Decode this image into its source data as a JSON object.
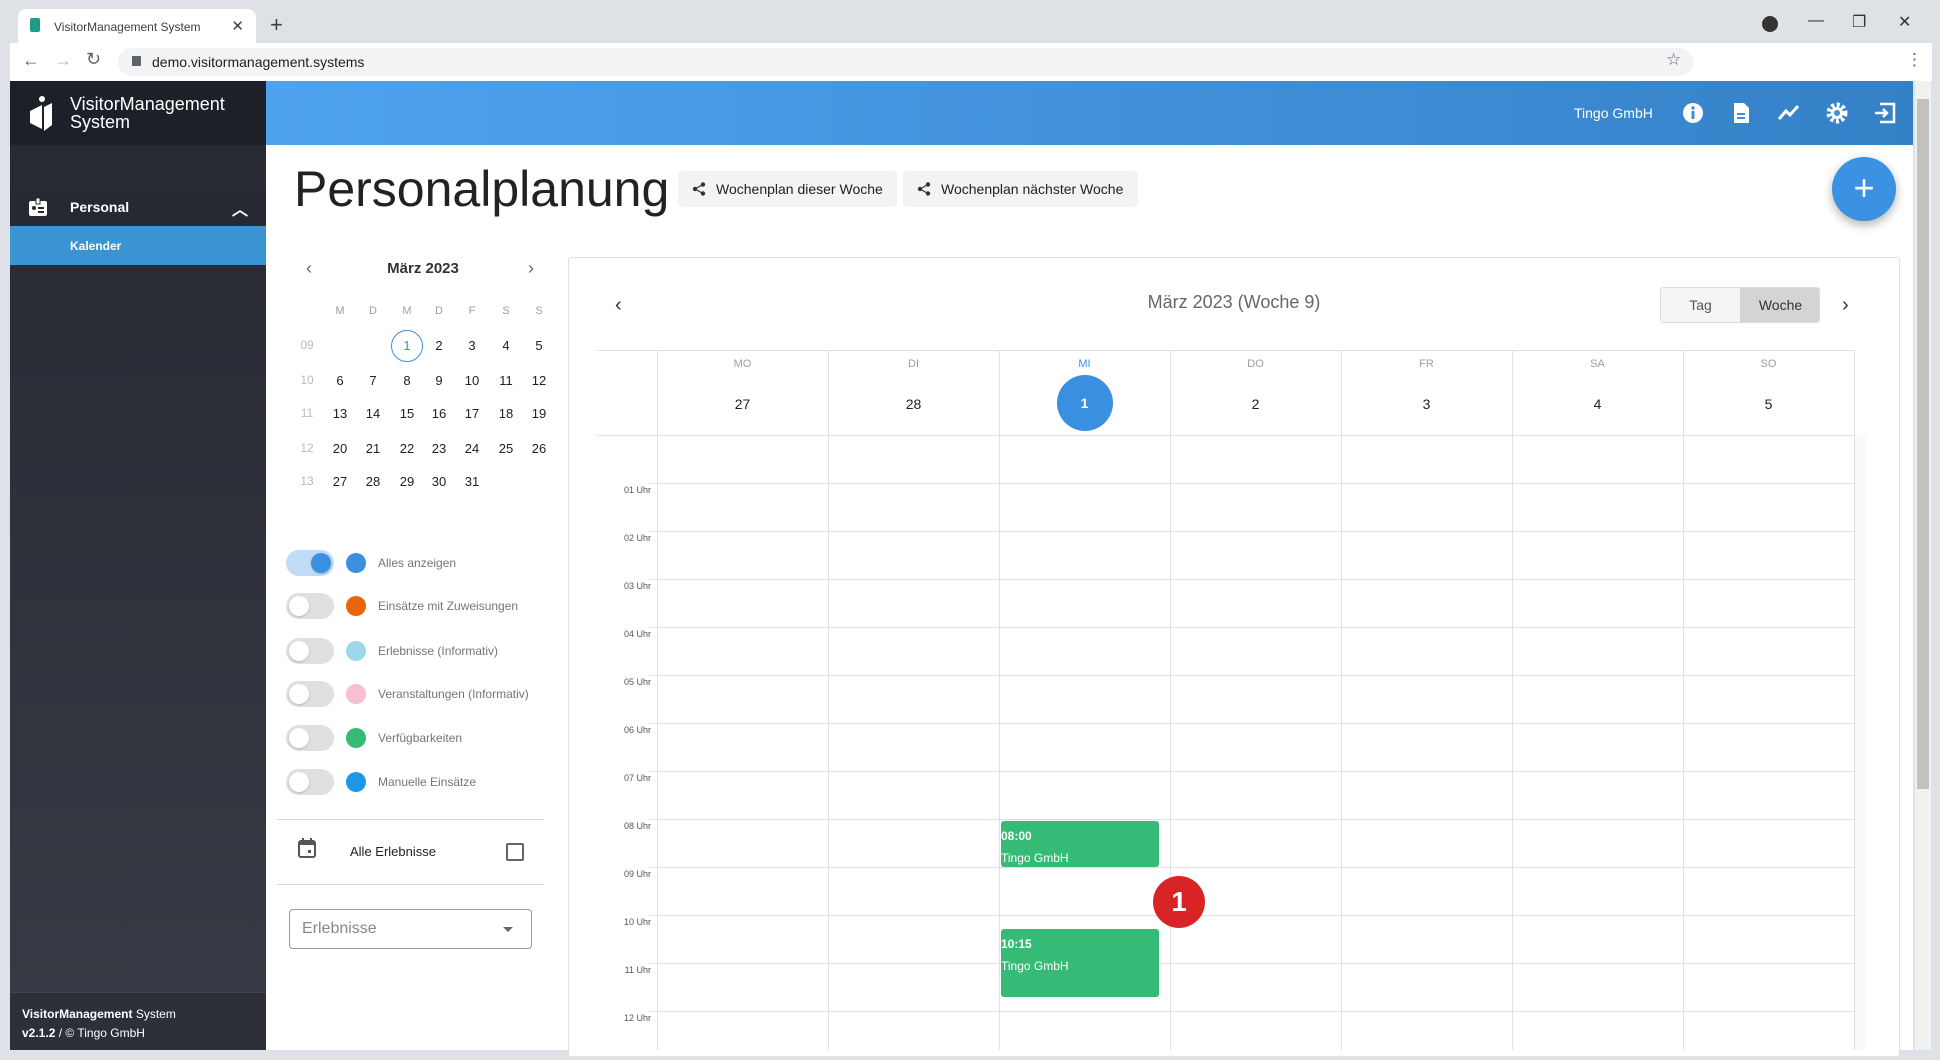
{
  "browser": {
    "tab_title": "VisitorManagement System",
    "url": "demo.visitormanagement.systems"
  },
  "sidebar": {
    "brand_line1": "VisitorManagement",
    "brand_line2": "System",
    "section": "Personal",
    "items": [
      {
        "label": "Kalender",
        "active": true
      }
    ],
    "footer": {
      "brand_bold": "VisitorManagement",
      "brand_rest": "System",
      "version": "v2.1.2",
      "copyright": "/ © Tingo GmbH"
    }
  },
  "header": {
    "company": "Tingo GmbH",
    "icons": [
      "info-icon",
      "document-icon",
      "chart-line-icon",
      "gear-icon",
      "logout-icon"
    ],
    "color": "#3d8fdc"
  },
  "page": {
    "title": "Personalplanung",
    "share_this_week": "Wochenplan dieser Woche",
    "share_next_week": "Wochenplan nächster Woche",
    "fab": "+"
  },
  "mini_calendar": {
    "month": "März 2023",
    "weekdays": [
      "M",
      "D",
      "M",
      "D",
      "F",
      "S",
      "S"
    ],
    "weeks": [
      {
        "no": "09",
        "days": [
          "",
          "",
          "1",
          "2",
          "3",
          "4",
          "5"
        ]
      },
      {
        "no": "10",
        "days": [
          "6",
          "7",
          "8",
          "9",
          "10",
          "11",
          "12"
        ]
      },
      {
        "no": "11",
        "days": [
          "13",
          "14",
          "15",
          "16",
          "17",
          "18",
          "19"
        ]
      },
      {
        "no": "12",
        "days": [
          "20",
          "21",
          "22",
          "23",
          "24",
          "25",
          "26"
        ]
      },
      {
        "no": "13",
        "days": [
          "27",
          "28",
          "29",
          "30",
          "31",
          "",
          ""
        ]
      }
    ],
    "selected": "1"
  },
  "filters": [
    {
      "label": "Alles anzeigen",
      "on": true,
      "color": "#3b8fe0"
    },
    {
      "label": "Einsätze mit Zuweisungen",
      "on": false,
      "color": "#e8650a"
    },
    {
      "label": "Erlebnisse (Informativ)",
      "on": false,
      "color": "#9bd8ea"
    },
    {
      "label": "Veranstaltungen (Informativ)",
      "on": false,
      "color": "#f7bfd0"
    },
    {
      "label": "Verfügbarkeiten",
      "on": false,
      "color": "#35bb76"
    },
    {
      "label": "Manuelle Einsätze",
      "on": false,
      "color": "#1e96e8"
    }
  ],
  "alle_erlebnisse": {
    "label": "Alle Erlebnisse",
    "checked": false
  },
  "select": {
    "placeholder": "Erlebnisse"
  },
  "calendar": {
    "title": "März 2023 (Woche 9)",
    "view_day": "Tag",
    "view_week": "Woche",
    "active_view": "Woche",
    "days": [
      {
        "name": "MO",
        "date": "27"
      },
      {
        "name": "DI",
        "date": "28"
      },
      {
        "name": "MI",
        "date": "1",
        "today": true
      },
      {
        "name": "DO",
        "date": "2"
      },
      {
        "name": "FR",
        "date": "3"
      },
      {
        "name": "SA",
        "date": "4"
      },
      {
        "name": "SO",
        "date": "5"
      }
    ],
    "hours": [
      "01 Uhr",
      "02 Uhr",
      "03 Uhr",
      "04 Uhr",
      "05 Uhr",
      "06 Uhr",
      "07 Uhr",
      "08 Uhr",
      "09 Uhr",
      "10 Uhr",
      "11 Uhr",
      "12 Uhr"
    ],
    "events": [
      {
        "time": "08:00",
        "title": "Tingo GmbH",
        "day": "MI",
        "color": "#35bb76"
      },
      {
        "time": "10:15",
        "title": "Tingo GmbH",
        "day": "MI",
        "color": "#35bb76"
      }
    ],
    "marker": "1"
  }
}
